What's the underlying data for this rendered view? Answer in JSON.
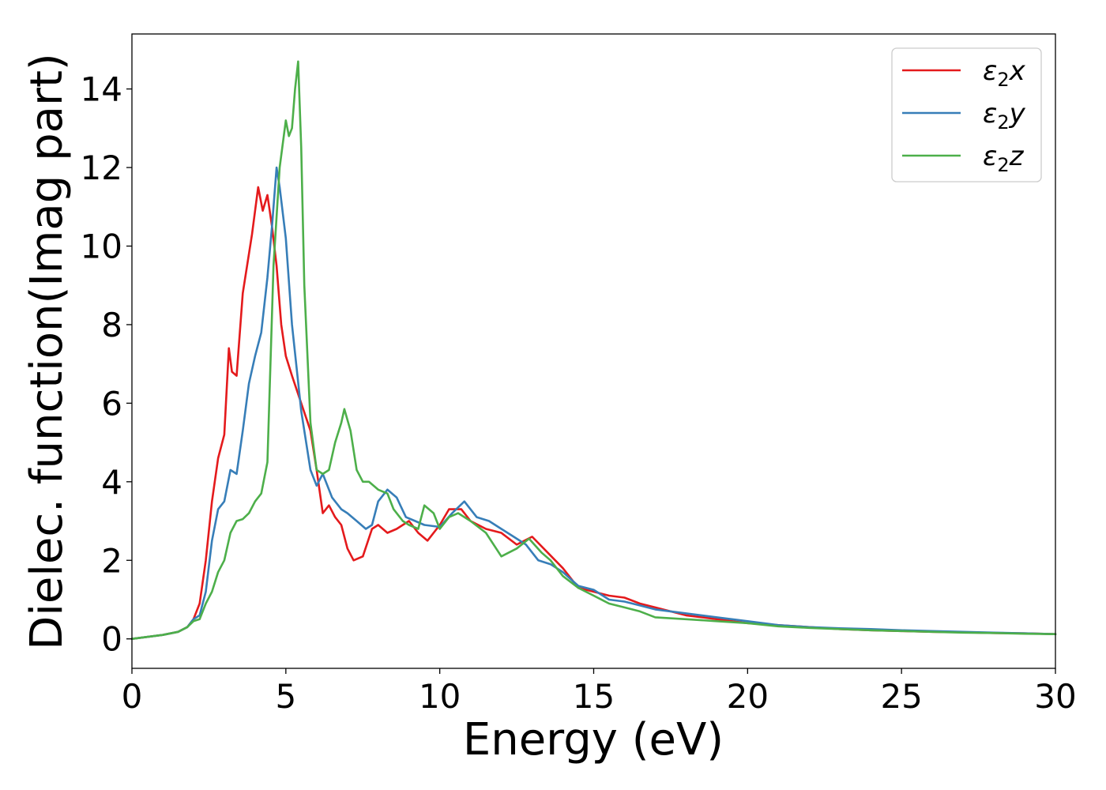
{
  "chart_data": {
    "type": "line",
    "title": "",
    "xlabel": "Energy (eV)",
    "ylabel": "Dielec. function(Imag part)",
    "xlim": [
      0,
      30
    ],
    "ylim": [
      -0.75,
      15.4
    ],
    "xticks": [
      0,
      5,
      10,
      15,
      20,
      25,
      30
    ],
    "yticks": [
      0,
      2,
      4,
      6,
      8,
      10,
      12,
      14
    ],
    "grid": false,
    "legend_position": "top-right",
    "series": [
      {
        "name": "ε₂x",
        "legend": {
          "base": "ε",
          "sub": "2",
          "suffix": "x"
        },
        "color": "#e41a1c",
        "x": [
          0,
          0.5,
          1.0,
          1.5,
          1.8,
          2.0,
          2.2,
          2.4,
          2.6,
          2.8,
          3.0,
          3.15,
          3.25,
          3.4,
          3.6,
          3.9,
          4.1,
          4.25,
          4.4,
          4.55,
          4.7,
          4.85,
          5.0,
          5.2,
          5.5,
          5.8,
          6.0,
          6.2,
          6.4,
          6.6,
          6.8,
          7.0,
          7.2,
          7.5,
          7.8,
          8.0,
          8.3,
          8.6,
          9.0,
          9.3,
          9.6,
          10.0,
          10.3,
          10.7,
          11.0,
          11.5,
          12.0,
          12.5,
          13.0,
          13.5,
          14.0,
          14.5,
          15.0,
          15.5,
          16.0,
          16.5,
          17.0,
          17.5,
          18.0,
          19.0,
          20.0,
          21.0,
          22.0,
          23.0,
          24.0,
          25.0,
          26.0,
          27.0,
          28.0,
          29.0,
          30.0
        ],
        "y": [
          0,
          0.05,
          0.1,
          0.18,
          0.3,
          0.5,
          0.9,
          2.0,
          3.5,
          4.6,
          5.2,
          7.4,
          6.8,
          6.7,
          8.8,
          10.3,
          11.5,
          10.9,
          11.3,
          10.5,
          9.5,
          8.0,
          7.2,
          6.7,
          6.0,
          5.3,
          4.3,
          3.2,
          3.4,
          3.1,
          2.9,
          2.3,
          2.0,
          2.1,
          2.8,
          2.9,
          2.7,
          2.8,
          3.0,
          2.7,
          2.5,
          2.9,
          3.3,
          3.3,
          3.0,
          2.8,
          2.7,
          2.4,
          2.6,
          2.2,
          1.8,
          1.3,
          1.2,
          1.1,
          1.05,
          0.9,
          0.8,
          0.7,
          0.6,
          0.5,
          0.4,
          0.35,
          0.3,
          0.25,
          0.22,
          0.2,
          0.18,
          0.17,
          0.15,
          0.14,
          0.12
        ]
      },
      {
        "name": "ε₂y",
        "legend": {
          "base": "ε",
          "sub": "2",
          "suffix": "y"
        },
        "color": "#377eb8",
        "x": [
          0,
          0.5,
          1.0,
          1.5,
          1.8,
          2.0,
          2.2,
          2.4,
          2.6,
          2.8,
          3.0,
          3.2,
          3.4,
          3.6,
          3.8,
          4.0,
          4.2,
          4.4,
          4.55,
          4.7,
          4.8,
          5.0,
          5.2,
          5.5,
          5.8,
          6.0,
          6.2,
          6.5,
          6.8,
          7.0,
          7.3,
          7.6,
          7.8,
          8.0,
          8.3,
          8.6,
          8.9,
          9.2,
          9.5,
          10.0,
          10.4,
          10.8,
          11.2,
          11.6,
          12.0,
          12.4,
          12.8,
          13.2,
          13.6,
          14.0,
          14.5,
          15.0,
          15.5,
          16.0,
          16.5,
          17.0,
          17.5,
          18.0,
          19.0,
          20.0,
          21.0,
          22.0,
          23.0,
          24.0,
          25.0,
          26.0,
          27.0,
          28.0,
          29.0,
          30.0
        ],
        "y": [
          0,
          0.05,
          0.1,
          0.18,
          0.3,
          0.5,
          0.6,
          1.2,
          2.5,
          3.3,
          3.5,
          4.3,
          4.2,
          5.3,
          6.5,
          7.2,
          7.8,
          9.2,
          10.5,
          12.0,
          11.5,
          10.2,
          8.0,
          5.8,
          4.3,
          3.9,
          4.2,
          3.6,
          3.3,
          3.2,
          3.0,
          2.8,
          2.9,
          3.5,
          3.8,
          3.6,
          3.1,
          3.0,
          2.9,
          2.85,
          3.2,
          3.5,
          3.1,
          3.0,
          2.8,
          2.6,
          2.4,
          2.0,
          1.9,
          1.7,
          1.35,
          1.25,
          1.0,
          0.95,
          0.85,
          0.75,
          0.7,
          0.65,
          0.55,
          0.45,
          0.35,
          0.3,
          0.27,
          0.25,
          0.22,
          0.2,
          0.18,
          0.16,
          0.14,
          0.12
        ]
      },
      {
        "name": "ε₂z",
        "legend": {
          "base": "ε",
          "sub": "2",
          "suffix": "z"
        },
        "color": "#4daf4a",
        "x": [
          0,
          0.5,
          1.0,
          1.5,
          1.8,
          2.0,
          2.2,
          2.4,
          2.6,
          2.8,
          3.0,
          3.2,
          3.4,
          3.6,
          3.8,
          4.0,
          4.2,
          4.4,
          4.6,
          4.8,
          5.0,
          5.1,
          5.2,
          5.3,
          5.4,
          5.5,
          5.6,
          5.8,
          6.0,
          6.2,
          6.4,
          6.6,
          6.8,
          6.9,
          7.1,
          7.3,
          7.5,
          7.7,
          8.0,
          8.3,
          8.5,
          8.8,
          9.0,
          9.3,
          9.5,
          9.8,
          10.0,
          10.3,
          10.6,
          11.0,
          11.5,
          12.0,
          12.5,
          12.9,
          13.3,
          13.6,
          14.0,
          14.5,
          15.0,
          15.5,
          16.0,
          16.5,
          17.0,
          18.0,
          19.0,
          20.0,
          21.0,
          22.0,
          23.0,
          24.0,
          25.0,
          26.0,
          27.0,
          28.0,
          29.0,
          30.0
        ],
        "y": [
          0,
          0.05,
          0.1,
          0.18,
          0.3,
          0.45,
          0.5,
          0.9,
          1.2,
          1.7,
          2.0,
          2.7,
          3.0,
          3.05,
          3.2,
          3.5,
          3.7,
          4.5,
          9.5,
          12.0,
          13.2,
          12.8,
          13.0,
          14.0,
          14.7,
          12.5,
          9.0,
          5.5,
          4.3,
          4.2,
          4.3,
          5.0,
          5.5,
          5.85,
          5.3,
          4.3,
          4.0,
          4.0,
          3.8,
          3.7,
          3.3,
          3.0,
          2.9,
          2.8,
          3.4,
          3.2,
          2.8,
          3.1,
          3.2,
          3.0,
          2.7,
          2.1,
          2.3,
          2.55,
          2.2,
          2.0,
          1.6,
          1.3,
          1.1,
          0.9,
          0.8,
          0.7,
          0.55,
          0.5,
          0.45,
          0.4,
          0.32,
          0.28,
          0.25,
          0.22,
          0.2,
          0.18,
          0.16,
          0.15,
          0.13,
          0.12
        ]
      }
    ]
  }
}
